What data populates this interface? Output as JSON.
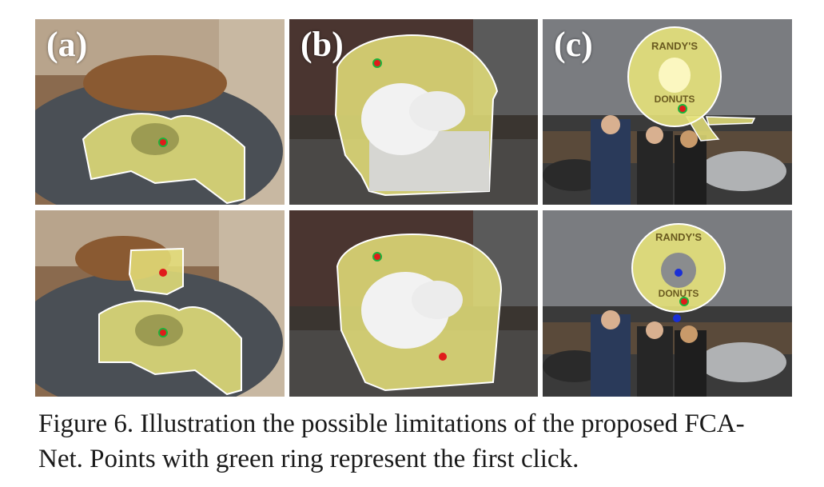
{
  "panel_labels": {
    "a": "(a)",
    "b": "(b)",
    "c": "(c)"
  },
  "signage": {
    "top": "RANDY'S",
    "bottom": "DONUTS"
  },
  "caption": {
    "line1": "Figure 6. Illustration the possible limitations of the proposed FCA-",
    "line2": "Net. Points with green ring represent the first click."
  },
  "colors": {
    "mask": "#f2ef8a",
    "positive_click": "#e01b1b",
    "first_click_ring": "#1bb33a",
    "negative_click": "#1a2fd6",
    "outline": "#ffffff"
  }
}
